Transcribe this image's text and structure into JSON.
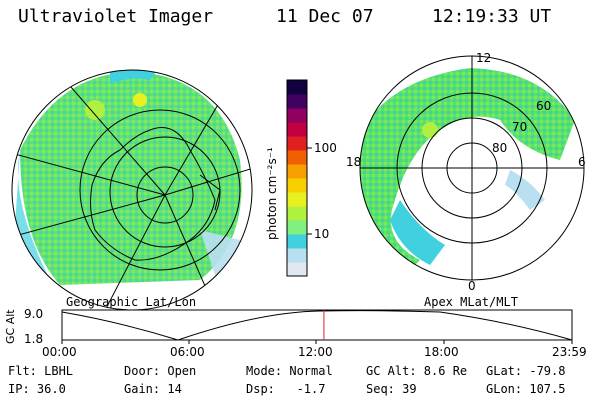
{
  "header": {
    "instrument": "Ultraviolet Imager",
    "date": "11 Dec 07",
    "time": "12:19:33 UT"
  },
  "colorbar": {
    "unit_label": "photon cm⁻²s⁻¹",
    "ticks": [
      "100",
      "10"
    ],
    "colors": [
      "#e0e8f0",
      "#b8e0f0",
      "#40d0e0",
      "#80f080",
      "#b0f040",
      "#e8f020",
      "#f8d000",
      "#f8a000",
      "#f06000",
      "#e02020",
      "#c00040",
      "#900060",
      "#400060",
      "#100040"
    ]
  },
  "left_panel": {
    "label": "Geographic Lat/Lon"
  },
  "right_panel": {
    "label": "Apex MLat/MLT",
    "mlt_labels": [
      "12",
      "18",
      "6",
      "0"
    ],
    "mlat_labels": [
      "60",
      "70",
      "80"
    ]
  },
  "altitude_plot": {
    "ylabel": "GC Alt",
    "y_ticks": [
      "9.0",
      "1.8"
    ],
    "x_ticks": [
      "00:00",
      "06:00",
      "12:00",
      "18:00",
      "23:59"
    ],
    "current_time_marker_fraction": 0.5136,
    "marker_color": "#e02020"
  },
  "info": {
    "filter": "Flt: LBHL",
    "door": "Door: Open",
    "mode": "Mode: Normal",
    "gc_alt": "GC Alt: 8.6 Re",
    "glat": "GLat: -79.8",
    "ip": "IP: 36.0",
    "gain": "Gain: 14",
    "dsp": "Dsp:   -1.7",
    "seq": "Seq: 39",
    "glon": "GLon: 107.5"
  }
}
